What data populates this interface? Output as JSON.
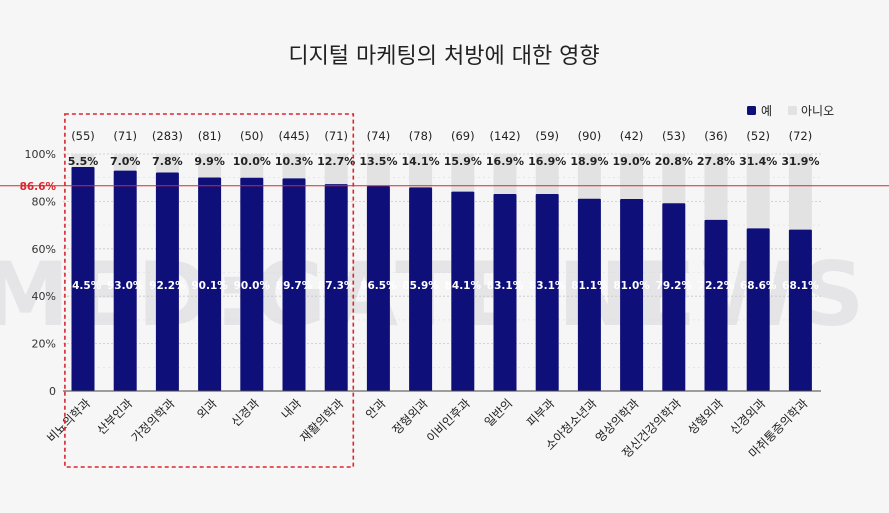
{
  "watermark": "MED:GATE NEWS",
  "colors": {
    "yes": "#0f0f7a",
    "no": "#e2e2e2",
    "average_line": "#d9262f",
    "highlight_box": "#d9262f"
  },
  "chart_data": {
    "type": "bar",
    "stacked": true,
    "title": "디지털 마케팅의 처방에 대한 영향",
    "xlabel": "",
    "ylabel": "",
    "ylim": [
      0,
      100
    ],
    "y_ticks": [
      "0",
      "20%",
      "40%",
      "60%",
      "80%",
      "100%"
    ],
    "legend_position": "top-right",
    "grid": true,
    "categories": [
      "비뇨의학과",
      "산부인과",
      "가정의학과",
      "외과",
      "신경과",
      "내과",
      "재활의학과",
      "안과",
      "정형외과",
      "이비인후과",
      "일반의",
      "피부과",
      "소아청소년과",
      "영상의학과",
      "정신건강의학과",
      "성형외과",
      "신경외과",
      "마취통증의학과"
    ],
    "counts": [
      "(55)",
      "(71)",
      "(283)",
      "(81)",
      "(50)",
      "(445)",
      "(71)",
      "(74)",
      "(78)",
      "(69)",
      "(142)",
      "(59)",
      "(90)",
      "(42)",
      "(53)",
      "(36)",
      "(52)",
      "(72)"
    ],
    "series": [
      {
        "name": "예",
        "values": [
          94.5,
          93.0,
          92.2,
          90.1,
          90.0,
          89.7,
          87.3,
          86.5,
          85.9,
          84.1,
          83.1,
          83.1,
          81.1,
          81.0,
          79.2,
          72.2,
          68.6,
          68.1
        ],
        "labels": [
          "94.5%",
          "93.0%",
          "92.2%",
          "90.1%",
          "90.0%",
          "89.7%",
          "87.3%",
          "86.5%",
          "85.9%",
          "84.1%",
          "83.1%",
          "83.1%",
          "81.1%",
          "81.0%",
          "79.2%",
          "72.2%",
          "68.6%",
          "68.1%"
        ]
      },
      {
        "name": "아니오",
        "values": [
          5.5,
          7.0,
          7.8,
          9.9,
          10.0,
          10.3,
          12.7,
          13.5,
          14.1,
          15.9,
          16.9,
          16.9,
          18.9,
          19.0,
          20.8,
          27.8,
          31.4,
          31.9
        ],
        "labels": [
          "5.5%",
          "7.0%",
          "7.8%",
          "9.9%",
          "10.0%",
          "10.3%",
          "12.7%",
          "13.5%",
          "14.1%",
          "15.9%",
          "16.9%",
          "16.9%",
          "18.9%",
          "19.0%",
          "20.8%",
          "27.8%",
          "31.4%",
          "31.9%"
        ]
      }
    ],
    "average": {
      "value": 86.6,
      "label": "86.6%"
    },
    "highlight_range": [
      0,
      6
    ]
  }
}
